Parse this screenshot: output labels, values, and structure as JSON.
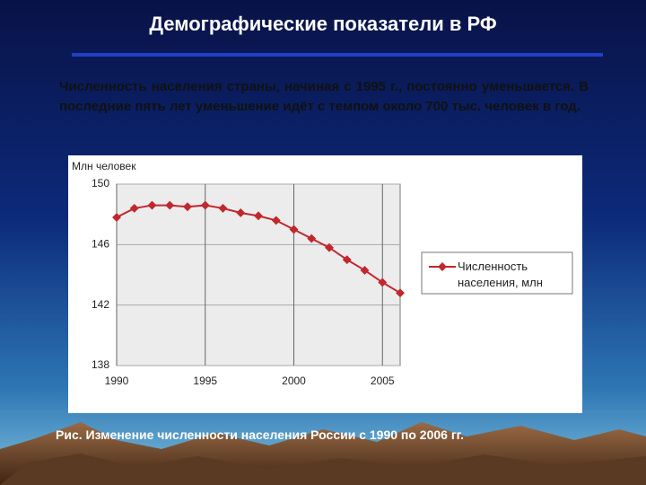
{
  "header": {
    "title": "Демографические показатели в РФ"
  },
  "paragraph": "Численность населения страны, начиная с 1995 г., постоянно уменьшается. В последние пять лет уменьшение идёт с темпом около 700 тыс. человек в год.",
  "caption": "Рис. Изменение численности населения России с 1990 по 2006 гг.",
  "chart_data": {
    "type": "line",
    "y_label": "Млн человек",
    "x": [
      1990,
      1991,
      1992,
      1993,
      1994,
      1995,
      1996,
      1997,
      1998,
      1999,
      2000,
      2001,
      2002,
      2003,
      2004,
      2005,
      2006
    ],
    "series": [
      {
        "name": "Численность населения, млн",
        "color": "#c0282d",
        "values": [
          147.8,
          148.4,
          148.6,
          148.6,
          148.5,
          148.6,
          148.4,
          148.1,
          147.9,
          147.6,
          147.0,
          146.4,
          145.8,
          145.0,
          144.3,
          143.5,
          142.8
        ]
      }
    ],
    "xlim": [
      1990,
      2006
    ],
    "xticks": [
      1990,
      1995,
      2000,
      2005
    ],
    "ylim": [
      138,
      150
    ],
    "yticks": [
      138,
      142,
      146,
      150
    ],
    "grid": true,
    "legend": "right"
  }
}
